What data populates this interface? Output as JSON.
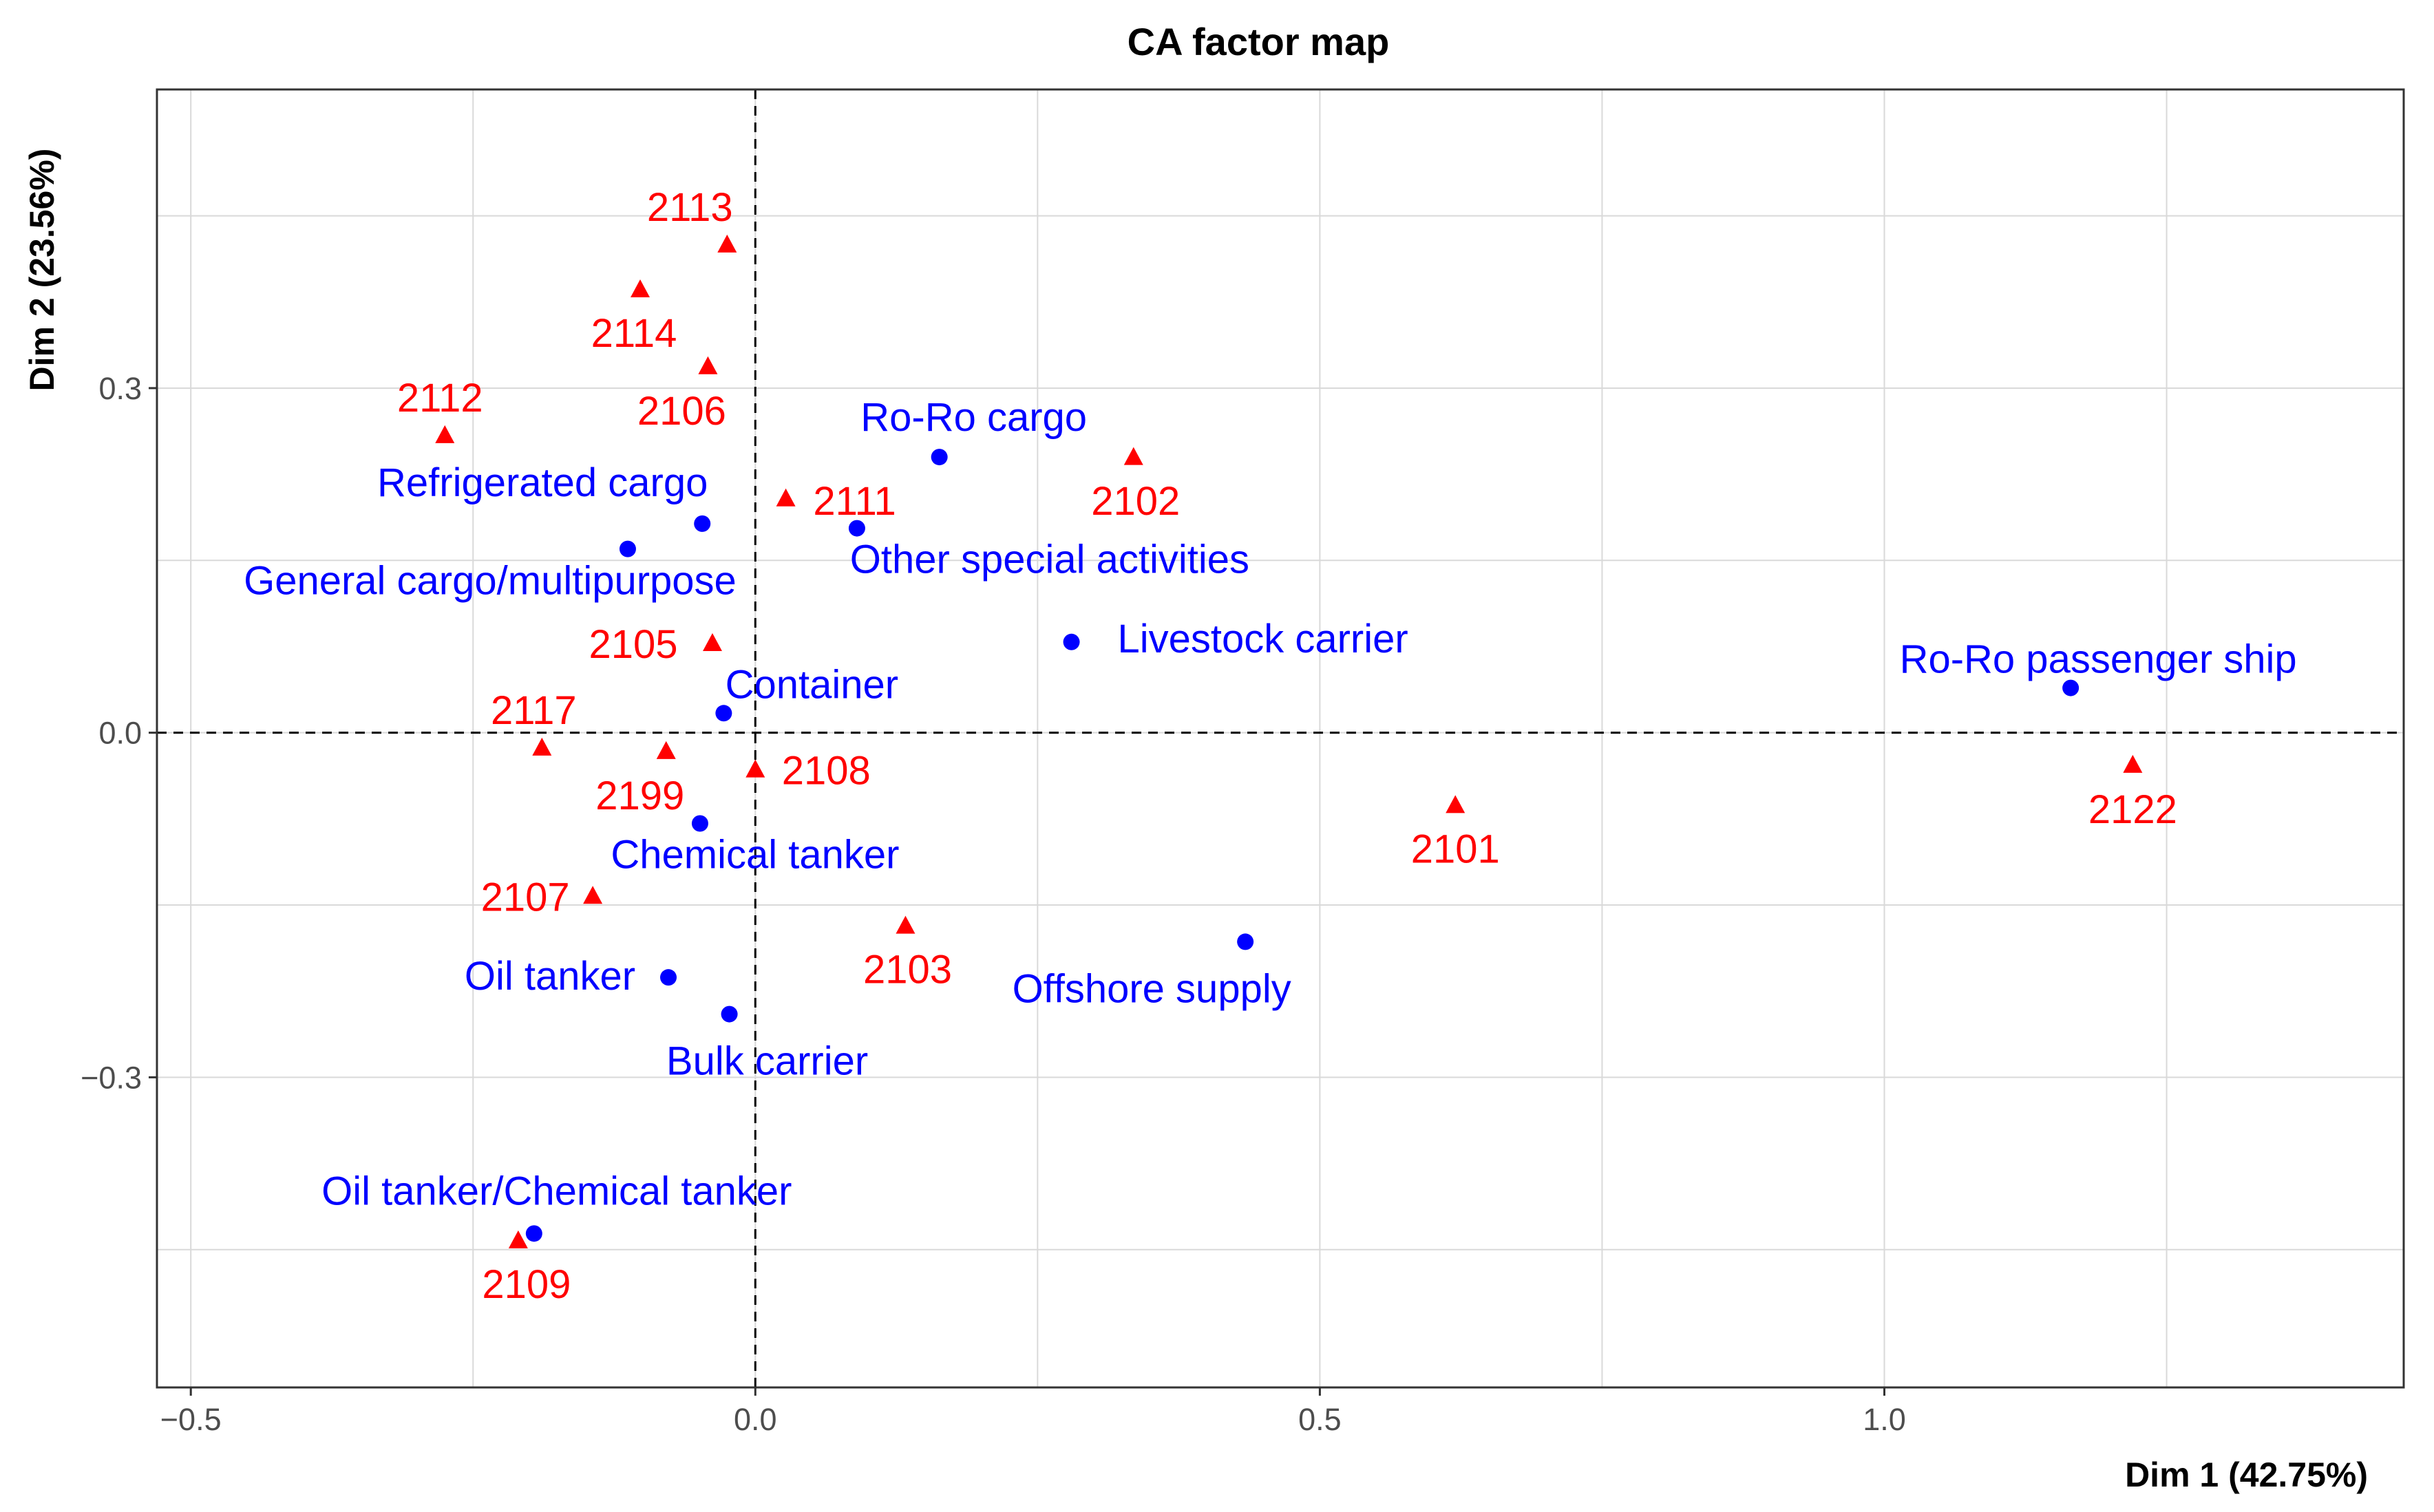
{
  "chart_data": {
    "type": "scatter",
    "title": "CA factor map",
    "xlabel": "Dim 1 (42.75%)",
    "ylabel": "Dim 2 (23.56%)",
    "xlim": [
      -0.53,
      1.46
    ],
    "ylim": [
      -0.57,
      0.56
    ],
    "xticks": [
      -0.5,
      0.0,
      0.5,
      1.0
    ],
    "xtick_labels": [
      "−0.5",
      "0.0",
      "0.5",
      "1.0"
    ],
    "yticks": [
      -0.3,
      0.0,
      0.3
    ],
    "ytick_labels": [
      "−0.3",
      "0.0",
      "0.3"
    ],
    "grid": true,
    "reference_lines": {
      "x": 0,
      "y": 0,
      "style": "dashed"
    },
    "colors": {
      "rows": "#0000ff",
      "cols": "#ff0000",
      "grid": "#d9d9d9",
      "frame": "#333333"
    },
    "series": [
      {
        "marker": "circle",
        "color": "#0000ff",
        "points": [
          {
            "label": "Ro-Ro cargo",
            "x": 0.163,
            "y": 0.24
          },
          {
            "label": "Refrigerated cargo",
            "x": -0.047,
            "y": 0.182
          },
          {
            "label": "Other special activities",
            "x": 0.09,
            "y": 0.178
          },
          {
            "label": "General cargo/multipurpose",
            "x": -0.113,
            "y": 0.16
          },
          {
            "label": "Livestock carrier",
            "x": 0.28,
            "y": 0.079
          },
          {
            "label": "Ro-Ro passenger ship",
            "x": 1.165,
            "y": 0.039
          },
          {
            "label": "Container",
            "x": -0.028,
            "y": 0.017
          },
          {
            "label": "Chemical tanker",
            "x": -0.049,
            "y": -0.079
          },
          {
            "label": "Offshore supply",
            "x": 0.434,
            "y": -0.182
          },
          {
            "label": "Oil tanker",
            "x": -0.077,
            "y": -0.213
          },
          {
            "label": "Bulk carrier",
            "x": -0.023,
            "y": -0.245
          },
          {
            "label": "Oil tanker/Chemical tanker",
            "x": -0.196,
            "y": -0.436
          }
        ]
      },
      {
        "marker": "triangle",
        "color": "#ff0000",
        "points": [
          {
            "label": "2113",
            "x": -0.025,
            "y": 0.424
          },
          {
            "label": "2114",
            "x": -0.102,
            "y": 0.385
          },
          {
            "label": "2106",
            "x": -0.042,
            "y": 0.318
          },
          {
            "label": "2112",
            "x": -0.275,
            "y": 0.258
          },
          {
            "label": "2102",
            "x": 0.335,
            "y": 0.239
          },
          {
            "label": "2111",
            "x": 0.027,
            "y": 0.203
          },
          {
            "label": "2105",
            "x": -0.038,
            "y": 0.077
          },
          {
            "label": "2117",
            "x": -0.189,
            "y": -0.014
          },
          {
            "label": "2199",
            "x": -0.079,
            "y": -0.017
          },
          {
            "label": "2108",
            "x": 0.0,
            "y": -0.033
          },
          {
            "label": "2122",
            "x": 1.22,
            "y": -0.029
          },
          {
            "label": "2101",
            "x": 0.62,
            "y": -0.064
          },
          {
            "label": "2107",
            "x": -0.144,
            "y": -0.143
          },
          {
            "label": "2103",
            "x": 0.133,
            "y": -0.169
          },
          {
            "label": "2109",
            "x": -0.21,
            "y": -0.443
          }
        ]
      }
    ]
  }
}
